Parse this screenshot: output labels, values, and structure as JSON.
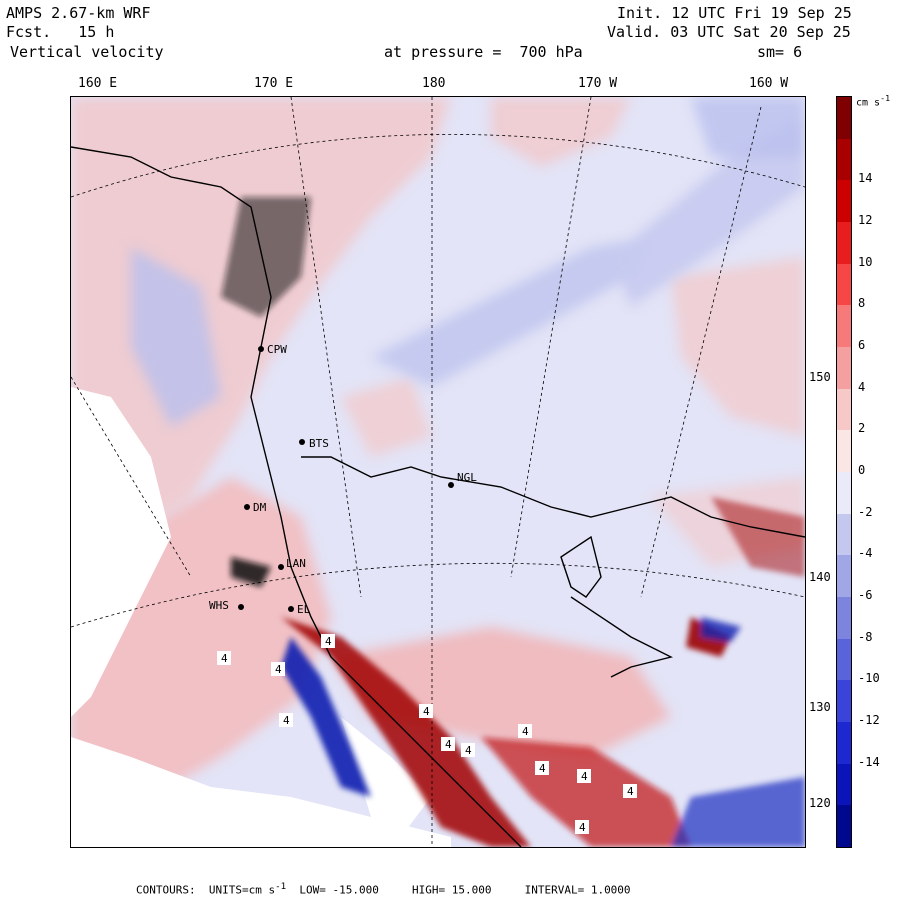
{
  "header": {
    "model": "AMPS 2.67-km WRF",
    "fcst_label": "Fcst.",
    "fcst_value": "15 h",
    "field": "Vertical velocity",
    "init_label": "Init.",
    "init_value": "12 UTC Fri 19 Sep 25",
    "valid_label": "Valid.",
    "valid_value": "03 UTC Sat 20 Sep 25",
    "pressure_label": "at pressure =",
    "pressure_value": "700 hPa",
    "smoothing": "sm= 6"
  },
  "longitude_labels": [
    "160 E",
    "170 E",
    "180",
    "170 W",
    "160 W"
  ],
  "latitude_labels": [
    "150 W",
    "140 W",
    "130 W",
    "120 W"
  ],
  "stations": [
    "CPW",
    "BTS",
    "NGL",
    "DM",
    "LAN",
    "WHS",
    "EL"
  ],
  "contour_labels": [
    "4",
    "4",
    "4",
    "4",
    "4",
    "4",
    "4",
    "4",
    "4",
    "4",
    "4",
    "4"
  ],
  "colorbar": {
    "units_label": "cm s",
    "units_exp": "-1",
    "ticks": [
      "14",
      "12",
      "10",
      "8",
      "6",
      "4",
      "2",
      "0",
      "-2",
      "-4",
      "-6",
      "-8",
      "-10",
      "-12",
      "-14"
    ],
    "colors": [
      "#7f0000",
      "#a80000",
      "#cc0000",
      "#e81e1e",
      "#f64646",
      "#f77a7a",
      "#f4a0a0",
      "#f6c8c8",
      "#fbe6e6",
      "#eaeaf8",
      "#c4c8ee",
      "#a0a6e6",
      "#7c84de",
      "#5a64da",
      "#3a44d8",
      "#1e28d0",
      "#0a14b8",
      "#00088e"
    ]
  },
  "footer": {
    "contours_label": "CONTOURS:",
    "units": "UNITS=cm s",
    "units_exp": "-1",
    "low": "LOW= -15.000",
    "high": "HIGH= 15.000",
    "interval": "INTERVAL= 1.0000"
  }
}
